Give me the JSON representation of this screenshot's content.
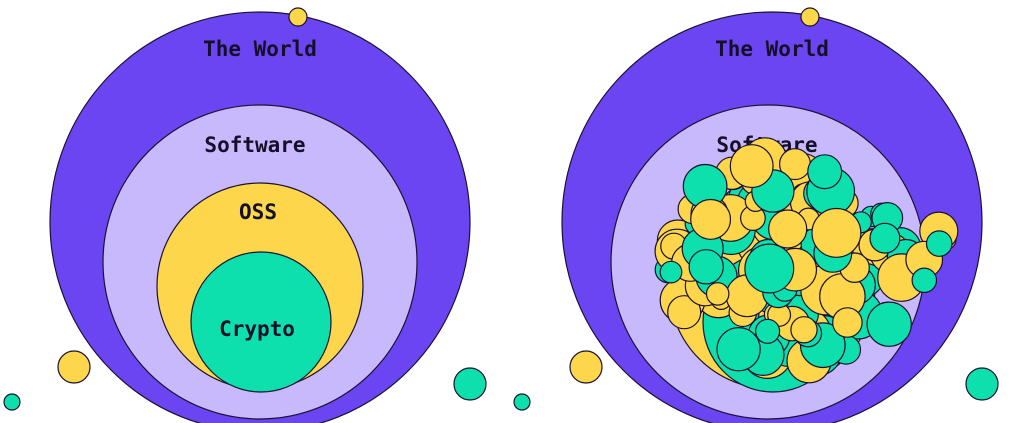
{
  "panels": [
    {
      "labels": [
        "The World",
        "Software",
        "OSS",
        "Crypto"
      ]
    },
    {
      "labels": [
        "The World",
        "Software"
      ]
    }
  ]
}
